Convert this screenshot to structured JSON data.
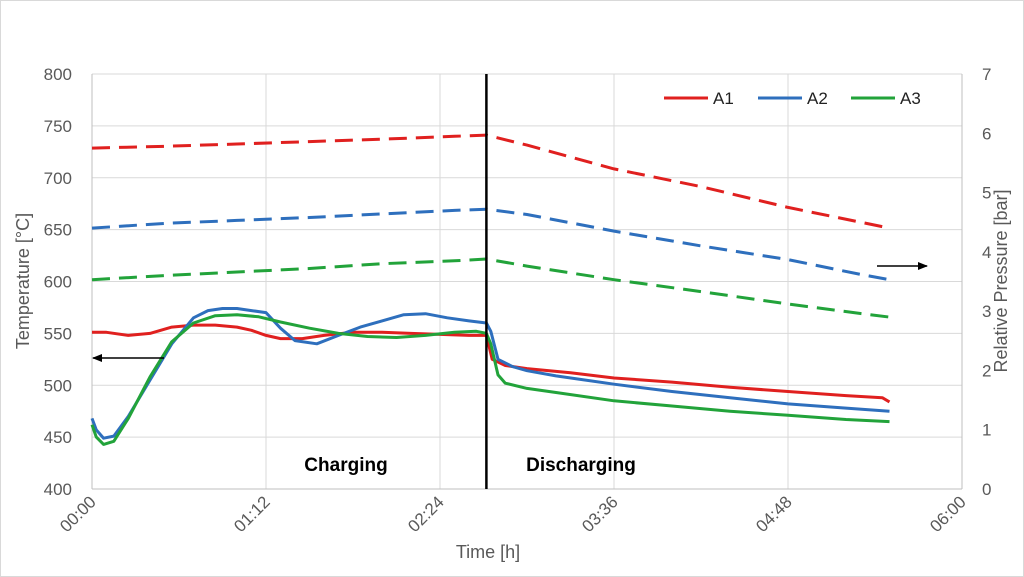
{
  "chart_data": {
    "type": "line",
    "xlabel": "Time [h]",
    "ylabel": "Temperature [°C]",
    "y2label": "Relative Pressure [bar]",
    "x_unit": "hours",
    "xlim": [
      0,
      6
    ],
    "ylim": [
      400,
      800
    ],
    "y2lim": [
      0,
      7
    ],
    "x_ticks": [
      "00:00",
      "01:12",
      "02:24",
      "03:36",
      "04:48",
      "06:00"
    ],
    "y_ticks": [
      "400",
      "450",
      "500",
      "550",
      "600",
      "650",
      "700",
      "750",
      "800"
    ],
    "y2_ticks": [
      "0",
      "1",
      "2",
      "3",
      "4",
      "5",
      "6",
      "7"
    ],
    "grid": true,
    "legend_position": "top-right",
    "phase_labels": [
      "Charging",
      "Discharging"
    ],
    "phase_boundary_x": 2.72,
    "colors": {
      "A1": "#e0201f",
      "A2": "#2e6fbd",
      "A3": "#22a33a",
      "divider": "#000000"
    },
    "series": [
      {
        "name": "A1",
        "axis": "left",
        "style": "solid",
        "x": [
          0,
          0.1,
          0.25,
          0.4,
          0.55,
          0.7,
          0.85,
          1.0,
          1.1,
          1.2,
          1.3,
          1.45,
          1.6,
          1.8,
          2.0,
          2.2,
          2.4,
          2.6,
          2.7,
          2.72,
          2.76,
          2.85,
          3.0,
          3.3,
          3.6,
          4.0,
          4.4,
          4.8,
          5.2,
          5.45,
          5.5
        ],
        "y": [
          551,
          551,
          548,
          550,
          556,
          558,
          558,
          556,
          553,
          548,
          545,
          545,
          548,
          551,
          551,
          550,
          549,
          548,
          548,
          548,
          525,
          519,
          516,
          512,
          507,
          503,
          498,
          494,
          490,
          488,
          484
        ]
      },
      {
        "name": "A2",
        "axis": "left",
        "style": "solid",
        "x": [
          0,
          0.03,
          0.08,
          0.15,
          0.25,
          0.4,
          0.55,
          0.7,
          0.8,
          0.9,
          1.0,
          1.1,
          1.2,
          1.3,
          1.4,
          1.55,
          1.7,
          1.85,
          2.0,
          2.15,
          2.3,
          2.45,
          2.6,
          2.72,
          2.75,
          2.8,
          2.9,
          3.0,
          3.2,
          3.6,
          4.0,
          4.4,
          4.8,
          5.2,
          5.5
        ],
        "y": [
          468,
          457,
          449,
          451,
          470,
          505,
          540,
          565,
          572,
          574,
          574,
          572,
          570,
          555,
          543,
          540,
          548,
          556,
          562,
          568,
          569,
          565,
          562,
          560,
          552,
          525,
          518,
          514,
          509,
          501,
          494,
          488,
          482,
          478,
          475
        ]
      },
      {
        "name": "A3",
        "axis": "left",
        "style": "solid",
        "x": [
          0,
          0.03,
          0.08,
          0.15,
          0.25,
          0.4,
          0.55,
          0.7,
          0.85,
          1.0,
          1.15,
          1.3,
          1.5,
          1.7,
          1.9,
          2.1,
          2.3,
          2.5,
          2.65,
          2.72,
          2.75,
          2.8,
          2.85,
          3.0,
          3.2,
          3.6,
          4.0,
          4.4,
          4.8,
          5.2,
          5.5
        ],
        "y": [
          462,
          450,
          443,
          446,
          468,
          508,
          542,
          560,
          567,
          568,
          566,
          561,
          555,
          550,
          547,
          546,
          548,
          551,
          552,
          550,
          540,
          510,
          502,
          497,
          493,
          485,
          480,
          475,
          471,
          467,
          465
        ]
      },
      {
        "name": "A1",
        "axis": "right",
        "style": "dashed",
        "x": [
          0,
          0.5,
          1.0,
          1.5,
          2.0,
          2.5,
          2.72,
          3.0,
          3.6,
          4.2,
          4.8,
          5.3,
          5.5
        ],
        "y": [
          5.75,
          5.78,
          5.82,
          5.86,
          5.9,
          5.95,
          5.97,
          5.8,
          5.4,
          5.1,
          4.75,
          4.5,
          4.4
        ]
      },
      {
        "name": "A2",
        "axis": "right",
        "style": "dashed",
        "x": [
          0,
          0.5,
          1.0,
          1.5,
          2.0,
          2.5,
          2.72,
          3.0,
          3.6,
          4.2,
          4.8,
          5.3,
          5.5
        ],
        "y": [
          4.4,
          4.48,
          4.53,
          4.58,
          4.64,
          4.7,
          4.72,
          4.63,
          4.35,
          4.1,
          3.87,
          3.62,
          3.53
        ]
      },
      {
        "name": "A3",
        "axis": "right",
        "style": "dashed",
        "x": [
          0,
          0.5,
          1.0,
          1.5,
          2.0,
          2.5,
          2.72,
          3.0,
          3.6,
          4.2,
          4.8,
          5.3,
          5.5
        ],
        "y": [
          3.53,
          3.6,
          3.66,
          3.72,
          3.8,
          3.85,
          3.88,
          3.76,
          3.53,
          3.33,
          3.12,
          2.96,
          2.9
        ]
      }
    ],
    "annotations": [
      {
        "type": "arrow",
        "points_to": "left axis",
        "series_group": "solid lines"
      },
      {
        "type": "arrow",
        "points_to": "right axis",
        "series_group": "dashed lines"
      }
    ]
  }
}
